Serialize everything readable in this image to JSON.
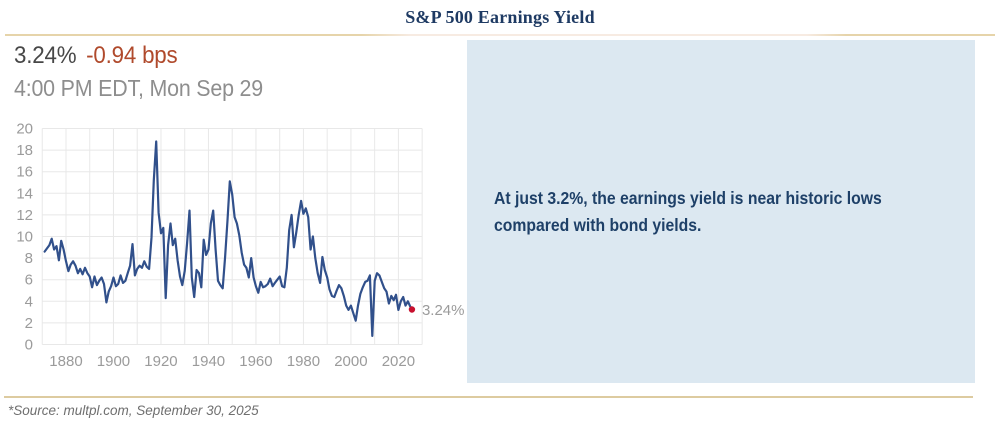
{
  "header": {
    "title": "S&P 500 Earnings Yield"
  },
  "quote": {
    "value": "3.24%",
    "change": "-0.94 bps",
    "timestamp": "4:00 PM EDT, Mon Sep 29"
  },
  "callout": {
    "lines": [
      "At just 3.2%, the earnings yield is near historic lows",
      "compared with bond yields."
    ],
    "background": "#dce8f1",
    "text_color": "#1e4068"
  },
  "footer": {
    "source": "*Source: multpl.com, September 30, 2025"
  },
  "chart_data": {
    "type": "line",
    "title": "S&P 500 Earnings Yield",
    "xlabel": "",
    "ylabel": "",
    "xlim": [
      1870,
      2030
    ],
    "ylim": [
      0,
      20
    ],
    "grid": {
      "on": true,
      "x_step": 10,
      "y_step": 2
    },
    "y_ticks": [
      0,
      2,
      4,
      6,
      8,
      10,
      12,
      14,
      16,
      18,
      20
    ],
    "x_label_ticks": [
      1880,
      1900,
      1920,
      1940,
      1960,
      1980,
      2000,
      2020
    ],
    "legend": "none",
    "series": [
      {
        "name": "S&P 500 Earnings Yield (%)",
        "points": [
          [
            1871,
            8.6
          ],
          [
            1872,
            8.9
          ],
          [
            1873,
            9.2
          ],
          [
            1874,
            9.8
          ],
          [
            1875,
            8.8
          ],
          [
            1876,
            9.1
          ],
          [
            1877,
            7.8
          ],
          [
            1878,
            9.6
          ],
          [
            1879,
            8.8
          ],
          [
            1880,
            7.7
          ],
          [
            1881,
            6.8
          ],
          [
            1882,
            7.4
          ],
          [
            1883,
            7.7
          ],
          [
            1884,
            7.3
          ],
          [
            1885,
            6.6
          ],
          [
            1886,
            7.0
          ],
          [
            1887,
            6.5
          ],
          [
            1888,
            7.1
          ],
          [
            1889,
            6.6
          ],
          [
            1890,
            6.3
          ],
          [
            1891,
            5.3
          ],
          [
            1892,
            6.3
          ],
          [
            1893,
            5.5
          ],
          [
            1894,
            5.9
          ],
          [
            1895,
            6.2
          ],
          [
            1896,
            5.6
          ],
          [
            1897,
            3.9
          ],
          [
            1898,
            4.9
          ],
          [
            1899,
            5.4
          ],
          [
            1900,
            6.2
          ],
          [
            1901,
            5.4
          ],
          [
            1902,
            5.6
          ],
          [
            1903,
            6.4
          ],
          [
            1904,
            5.7
          ],
          [
            1905,
            5.9
          ],
          [
            1906,
            6.6
          ],
          [
            1907,
            7.3
          ],
          [
            1908,
            9.3
          ],
          [
            1909,
            6.4
          ],
          [
            1910,
            7.0
          ],
          [
            1911,
            7.3
          ],
          [
            1912,
            7.1
          ],
          [
            1913,
            7.7
          ],
          [
            1914,
            7.2
          ],
          [
            1915,
            7.0
          ],
          [
            1916,
            9.9
          ],
          [
            1917,
            15.2
          ],
          [
            1918,
            18.8
          ],
          [
            1919,
            12.2
          ],
          [
            1920,
            10.3
          ],
          [
            1921,
            10.8
          ],
          [
            1922,
            4.3
          ],
          [
            1923,
            9.2
          ],
          [
            1924,
            11.2
          ],
          [
            1925,
            9.2
          ],
          [
            1926,
            9.8
          ],
          [
            1927,
            7.8
          ],
          [
            1928,
            6.3
          ],
          [
            1929,
            5.5
          ],
          [
            1930,
            6.8
          ],
          [
            1931,
            9.4
          ],
          [
            1932,
            12.4
          ],
          [
            1933,
            6.2
          ],
          [
            1934,
            4.4
          ],
          [
            1935,
            6.9
          ],
          [
            1936,
            6.6
          ],
          [
            1937,
            5.3
          ],
          [
            1938,
            9.7
          ],
          [
            1939,
            8.3
          ],
          [
            1940,
            8.8
          ],
          [
            1941,
            11.2
          ],
          [
            1942,
            12.4
          ],
          [
            1943,
            8.8
          ],
          [
            1944,
            5.9
          ],
          [
            1945,
            5.5
          ],
          [
            1946,
            5.2
          ],
          [
            1947,
            8.1
          ],
          [
            1948,
            11.5
          ],
          [
            1949,
            15.1
          ],
          [
            1950,
            13.9
          ],
          [
            1951,
            11.8
          ],
          [
            1952,
            11.2
          ],
          [
            1953,
            10.1
          ],
          [
            1954,
            8.5
          ],
          [
            1955,
            7.4
          ],
          [
            1956,
            7.1
          ],
          [
            1957,
            6.2
          ],
          [
            1958,
            8.0
          ],
          [
            1959,
            6.2
          ],
          [
            1960,
            5.4
          ],
          [
            1961,
            4.8
          ],
          [
            1962,
            5.8
          ],
          [
            1963,
            5.3
          ],
          [
            1964,
            5.4
          ],
          [
            1965,
            5.6
          ],
          [
            1966,
            6.1
          ],
          [
            1967,
            5.4
          ],
          [
            1968,
            5.7
          ],
          [
            1969,
            6.0
          ],
          [
            1970,
            6.3
          ],
          [
            1971,
            5.4
          ],
          [
            1972,
            5.3
          ],
          [
            1973,
            7.1
          ],
          [
            1974,
            10.6
          ],
          [
            1975,
            12.0
          ],
          [
            1976,
            9.0
          ],
          [
            1977,
            10.4
          ],
          [
            1978,
            12.0
          ],
          [
            1979,
            13.3
          ],
          [
            1980,
            12.1
          ],
          [
            1981,
            12.6
          ],
          [
            1982,
            11.8
          ],
          [
            1983,
            8.8
          ],
          [
            1984,
            10.0
          ],
          [
            1985,
            8.0
          ],
          [
            1986,
            6.6
          ],
          [
            1987,
            5.7
          ],
          [
            1988,
            8.1
          ],
          [
            1989,
            6.9
          ],
          [
            1990,
            6.2
          ],
          [
            1991,
            5.1
          ],
          [
            1992,
            4.5
          ],
          [
            1993,
            4.4
          ],
          [
            1994,
            5.0
          ],
          [
            1995,
            5.5
          ],
          [
            1996,
            5.2
          ],
          [
            1997,
            4.5
          ],
          [
            1998,
            3.6
          ],
          [
            1999,
            3.2
          ],
          [
            2000,
            3.6
          ],
          [
            2001,
            2.9
          ],
          [
            2002,
            2.2
          ],
          [
            2003,
            3.6
          ],
          [
            2004,
            4.7
          ],
          [
            2005,
            5.3
          ],
          [
            2006,
            5.8
          ],
          [
            2007,
            5.9
          ],
          [
            2008,
            6.4
          ],
          [
            2009,
            0.8
          ],
          [
            2010,
            5.9
          ],
          [
            2011,
            6.6
          ],
          [
            2012,
            6.4
          ],
          [
            2013,
            5.8
          ],
          [
            2014,
            5.2
          ],
          [
            2015,
            4.9
          ],
          [
            2016,
            3.8
          ],
          [
            2017,
            4.5
          ],
          [
            2018,
            4.1
          ],
          [
            2019,
            4.6
          ],
          [
            2020,
            3.2
          ],
          [
            2021,
            4.0
          ],
          [
            2022,
            4.4
          ],
          [
            2023,
            3.6
          ],
          [
            2024,
            4.0
          ],
          [
            2025,
            3.5
          ],
          [
            2025.7,
            3.24
          ]
        ]
      }
    ],
    "last_point": {
      "x": 2025.7,
      "y": 3.24,
      "label": "3.24%"
    },
    "colors": {
      "line": "#31508b",
      "dot": "#c8102e",
      "grid": "#e8e8e8",
      "tick": "#9b9b9b",
      "annotation": "#9b9b9b"
    }
  }
}
